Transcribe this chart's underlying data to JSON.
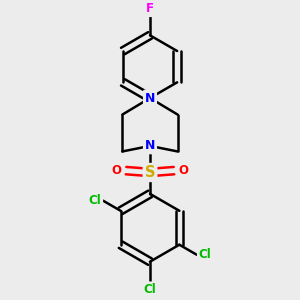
{
  "background_color": "#ececec",
  "bond_color": "#000000",
  "bond_width": 1.8,
  "atom_colors": {
    "F": "#ff00ff",
    "N": "#0000ff",
    "S": "#ccaa00",
    "O": "#ff0000",
    "Cl": "#00bb00"
  },
  "font_size": 8.5,
  "fig_width": 3.0,
  "fig_height": 3.0,
  "dpi": 100,
  "xlim": [
    -2.5,
    2.5
  ],
  "ylim": [
    -4.2,
    3.5
  ]
}
